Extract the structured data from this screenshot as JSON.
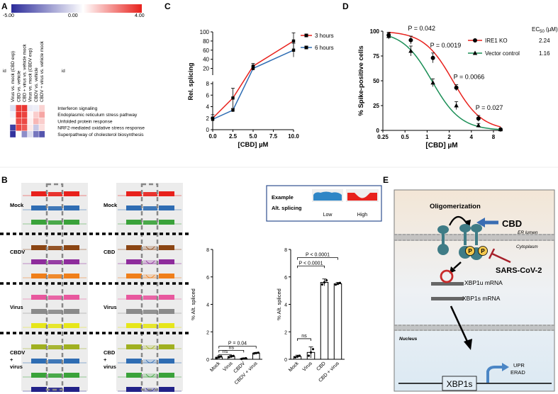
{
  "panel_letters": {
    "a": "A",
    "b": "B",
    "c": "C",
    "d": "D",
    "e": "E"
  },
  "panel_a": {
    "scale_labels": [
      "-5.00",
      "0.00",
      "4.00"
    ],
    "colors": {
      "low": "#2b2b9a",
      "mid": "#ffffff",
      "high": "#e8211c"
    },
    "column_labels": [
      "Virus vs. mock (CBD exp)",
      "CBD vs. vehicle",
      "CBD + virus vs. vehicle mock",
      "Virus vs. mock (CBDV exp)",
      "CBDV vs. vehicle",
      "CBDV + virus vs. vehicle mock"
    ],
    "id_label": "id",
    "row_labels": [
      "Interferon signaling",
      "Endoplasmic reticulum stress pathway",
      "Unfolded protein response",
      "NRF2-mediated oxidative stress response",
      "Superpathway of cholesterol biosynthesis"
    ],
    "heat_values": [
      [
        -0.8,
        3.5,
        3.6,
        -0.5,
        -0.4,
        0.8
      ],
      [
        -0.3,
        3.6,
        3.4,
        0.2,
        0.9,
        1.6
      ],
      [
        0.1,
        3.2,
        3.3,
        0.3,
        1.3,
        0.9
      ],
      [
        -4.5,
        3.3,
        3.0,
        0.4,
        -1.3,
        0.6
      ],
      [
        -4.8,
        -0.1,
        -2.7,
        -0.8,
        -3.2,
        -4.0
      ]
    ]
  },
  "chart_data": [
    {
      "panel": "C",
      "type": "line",
      "ylabel": "Rel. splicing",
      "xlabel": "[CBD] µM",
      "xlim": [
        0,
        10
      ],
      "x_ticks": [
        "0.0",
        "2.5",
        "5.0",
        "7.5",
        "10.0"
      ],
      "y_ticks_lower": [
        "0",
        "2",
        "4",
        "6",
        "8"
      ],
      "y_ticks_upper": [
        "20",
        "40",
        "60",
        "80",
        "100"
      ],
      "ylim_lower": [
        0,
        8
      ],
      "ylim_upper": [
        10,
        100
      ],
      "x": [
        0,
        2.5,
        5,
        10
      ],
      "series": [
        {
          "name": "3 hours",
          "color": "#e8211c",
          "values": [
            2.0,
            5.5,
            25,
            80
          ],
          "errors": [
            0.6,
            1.7,
            6,
            18
          ]
        },
        {
          "name": "6 hours",
          "color": "#2f6db3",
          "values": [
            1.8,
            3.4,
            20,
            60
          ],
          "errors": [
            0.4,
            0.3,
            4,
            15
          ]
        }
      ]
    },
    {
      "panel": "D",
      "type": "line",
      "ylabel": "% Spike-positive cells",
      "xlabel": "[CBD] µM",
      "x_scale": "log",
      "xlim": [
        0.25,
        10
      ],
      "ylim": [
        0,
        100
      ],
      "x_ticks": [
        0.25,
        0.5,
        1,
        2,
        4,
        8
      ],
      "x_tick_labels": [
        "0.25",
        "0.5",
        "1",
        "2",
        "4",
        "8"
      ],
      "y_ticks": [
        "0",
        "25",
        "50",
        "75",
        "100"
      ],
      "ec50_header": "EC",
      "ec50_sub": "50",
      "ec50_unit": " (µM)",
      "x": [
        0.3,
        0.6,
        1.2,
        2.5,
        5,
        10
      ],
      "series": [
        {
          "name": "IRE1 KO",
          "ec50": "2.24",
          "color": "#e8211c",
          "marker": "circle",
          "values": [
            96,
            91,
            73,
            43,
            12,
            1
          ],
          "errors": [
            3,
            4,
            5,
            3,
            3,
            1
          ]
        },
        {
          "name": "Vector control",
          "ec50": "1.16",
          "color": "#1c8f57",
          "marker": "triangle",
          "values": [
            95,
            80,
            48,
            25,
            5,
            1
          ],
          "errors": [
            3,
            5,
            4,
            4,
            2,
            0.5
          ]
        }
      ],
      "annotations": [
        {
          "text": "P = 0.042",
          "x": 0.6
        },
        {
          "text": "P = 0.0019",
          "x": 1.2
        },
        {
          "text": "P = 0.0066",
          "x": 2.5
        },
        {
          "text": "P = 0.027",
          "x": 5
        }
      ]
    },
    {
      "panel": "B-left",
      "type": "bar",
      "ylabel": "% Alt. spliced",
      "categories": [
        "Mock",
        "Virus",
        "CBDV",
        "CBDV + virus"
      ],
      "values": [
        0.15,
        0.2,
        0.05,
        0.45
      ],
      "errors": [
        0.1,
        0.08,
        0.05,
        0.05
      ],
      "ylim": [
        0,
        8
      ],
      "y_ticks": [
        "0",
        "2",
        "4",
        "6",
        "8"
      ],
      "annotations": [
        {
          "text": "P = 0.04",
          "from": 0,
          "to": 3
        },
        {
          "text": "ns",
          "from": 0,
          "to": 2
        },
        {
          "text": "ns",
          "from": 0,
          "to": 1
        }
      ]
    },
    {
      "panel": "B-right",
      "type": "bar",
      "ylabel": "% Alt. spliced",
      "categories": [
        "Mock",
        "Virus",
        "CBD",
        "CBD + virus"
      ],
      "values": [
        0.2,
        0.5,
        5.6,
        5.5
      ],
      "errors": [
        0.1,
        0.4,
        0.25,
        0.1
      ],
      "ylim": [
        0,
        8
      ],
      "y_ticks": [
        "0",
        "2",
        "4",
        "6",
        "8"
      ],
      "annotations": [
        {
          "text": "P < 0.0001",
          "from": 0,
          "to": 3
        },
        {
          "text": "P < 0.0001",
          "from": 0,
          "to": 2
        },
        {
          "text": "ns",
          "from": 0,
          "to": 1
        }
      ]
    }
  ],
  "panel_b": {
    "left_labels": [
      "Mock",
      "CBDV",
      "Virus",
      "CBDV\n+\nvirus"
    ],
    "right_labels": [
      "Mock",
      "CBD",
      "Virus",
      "CBD\n+\nvirus"
    ],
    "example_title": "Example",
    "alt_splicing_label": "Alt. splicing",
    "low_label": "Low",
    "high_label": "High",
    "track_colors": [
      "#e8211c",
      "#2f6db3",
      "#3aa23a",
      "#8b4513",
      "#8e2c9c",
      "#f07f1a",
      "#e8589e",
      "#8a8a8a",
      "#e6e61a",
      "#a0b020",
      "#2f6db3",
      "#3aa23a",
      "#222288"
    ]
  },
  "panel_e": {
    "oligomerization": "Oligomerization",
    "cbd": "CBD",
    "er_lumen": "ER lumen",
    "cytoplasm": "Cytoplasm",
    "p": "P",
    "sarscov2": "SARS-CoV-2",
    "xbp1u": "XBP1u mRNA",
    "xbp1s_mrna": "XBP1s mRNA",
    "nucleus": "Nucleus",
    "xbp1s": "XBP1s",
    "upr": "UPR",
    "erad": "ERAD"
  }
}
